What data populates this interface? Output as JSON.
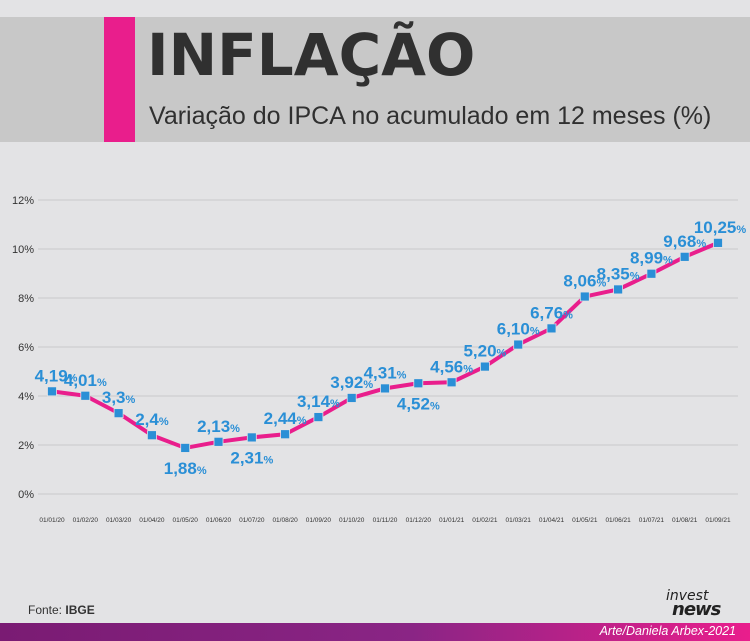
{
  "header": {
    "title": "INFLAÇÃO",
    "subtitle": "Variação do IPCA no acumulado em 12 meses (%)"
  },
  "footer": {
    "source_label": "Fonte:",
    "source_name": "IBGE",
    "logo_line1": "invest",
    "logo_line2": "news",
    "credit": "Arte/Daniela Arbex-2021"
  },
  "colors": {
    "line": "#e91e8c",
    "marker": "#2a8fd6",
    "label": "#2a8fd6",
    "grid": "#c9c9cc",
    "accent": "#e91e8c"
  },
  "chart_data": {
    "type": "line",
    "title": "INFLAÇÃO",
    "subtitle": "Variação do IPCA no acumulado em 12 meses (%)",
    "xlabel": "",
    "ylabel": "",
    "ylim": [
      0,
      12
    ],
    "yticks": [
      "0%",
      "2%",
      "4%",
      "6%",
      "8%",
      "10%",
      "12%"
    ],
    "grid": true,
    "categories": [
      "01/01/20",
      "01/02/20",
      "01/03/20",
      "01/04/20",
      "01/05/20",
      "01/06/20",
      "01/07/20",
      "01/08/20",
      "01/09/20",
      "01/10/20",
      "01/11/20",
      "01/12/20",
      "01/01/21",
      "01/02/21",
      "01/03/21",
      "01/04/21",
      "01/05/21",
      "01/06/21",
      "01/07/21",
      "01/08/21",
      "01/09/21"
    ],
    "values": [
      4.19,
      4.01,
      3.3,
      2.4,
      1.88,
      2.13,
      2.31,
      2.44,
      3.14,
      3.92,
      4.31,
      4.52,
      4.56,
      5.2,
      6.1,
      6.76,
      8.06,
      8.35,
      8.99,
      9.68,
      10.25
    ],
    "labels": [
      "4,19",
      "4,01",
      "3,3",
      "2,4",
      "1,88",
      "2,13",
      "2,31",
      "2,44",
      "3,14",
      "3,92",
      "4,31",
      "4,52",
      "4,56",
      "5,20",
      "6,10",
      "6,76",
      "8,06",
      "8,35",
      "8,99",
      "9,68",
      "10,25"
    ],
    "label_unit": "%"
  }
}
